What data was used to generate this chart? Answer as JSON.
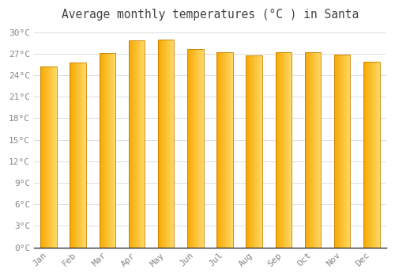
{
  "title": "Average monthly temperatures (°C ) in Santa",
  "months": [
    "Jan",
    "Feb",
    "Mar",
    "Apr",
    "May",
    "Jun",
    "Jul",
    "Aug",
    "Sep",
    "Oct",
    "Nov",
    "Dec"
  ],
  "temperatures": [
    25.2,
    25.8,
    27.1,
    28.8,
    29.0,
    27.6,
    27.2,
    26.8,
    27.2,
    27.2,
    26.9,
    25.9
  ],
  "bar_color_left": "#F5A800",
  "bar_color_right": "#FFD966",
  "bar_outline_color": "#C88000",
  "background_color": "#FFFFFF",
  "grid_color": "#DDDDDD",
  "title_color": "#444444",
  "tick_label_color": "#888888",
  "bottom_line_color": "#333333",
  "ylim": [
    0,
    31
  ],
  "yticks": [
    0,
    3,
    6,
    9,
    12,
    15,
    18,
    21,
    24,
    27,
    30
  ],
  "ytick_labels": [
    "0°C",
    "3°C",
    "6°C",
    "9°C",
    "12°C",
    "15°C",
    "18°C",
    "21°C",
    "24°C",
    "27°C",
    "30°C"
  ],
  "title_fontsize": 10.5,
  "tick_fontsize": 8,
  "bar_width": 0.55,
  "gradient_steps": 80
}
